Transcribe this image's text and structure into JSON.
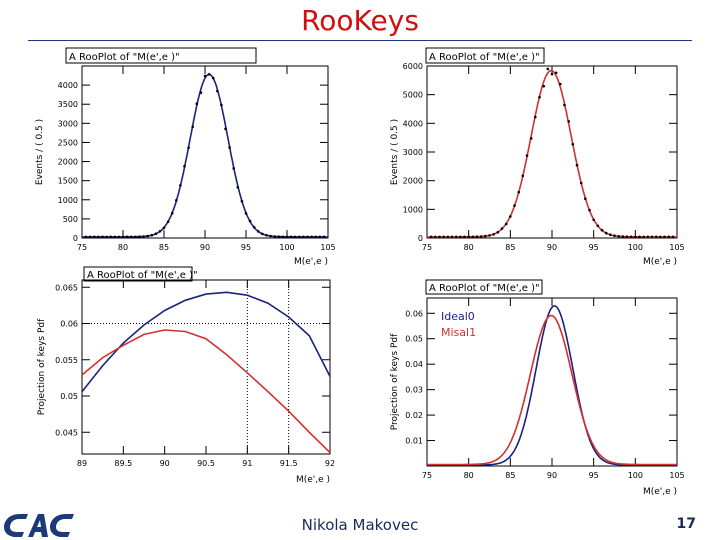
{
  "slide": {
    "title": "RooKeys",
    "footer_name": "Nikola Makovec",
    "page_number": "17"
  },
  "colors": {
    "series_a": "#1a237e",
    "series_b": "#d32f2f",
    "title": "#d01010"
  },
  "chart_data": [
    {
      "type": "line",
      "title": "A RooPlot of \"M(e',e )\"",
      "xlabel": "M(e',e )",
      "ylabel": "Events / ( 0.5 )",
      "xlim": [
        75,
        105
      ],
      "ylim": [
        0,
        4500
      ],
      "xticks": [
        75,
        80,
        85,
        90,
        95,
        100,
        105
      ],
      "yticks": [
        0,
        500,
        1000,
        1500,
        2000,
        2500,
        3000,
        3500,
        4000
      ],
      "ytick_labels": [
        "0",
        "500",
        "1000",
        "1500",
        "2000",
        "2500",
        "3000",
        "3500",
        "4000"
      ],
      "curve": {
        "peak": 4250,
        "mean": 90.5,
        "sigma": 2.3,
        "base": 30
      },
      "series": [
        {
          "color": "#1a237e"
        }
      ],
      "points": "fit-with-data"
    },
    {
      "type": "line",
      "title": "A RooPlot of \"M(e',e )\"",
      "xlabel": "M(e',e )",
      "ylabel": "Events / ( 0.5 )",
      "xlim": [
        75,
        105
      ],
      "ylim": [
        0,
        6000
      ],
      "xticks": [
        75,
        80,
        85,
        90,
        95,
        100,
        105
      ],
      "yticks": [
        0,
        1000,
        2000,
        3000,
        4000,
        5000,
        6000
      ],
      "ytick_labels": [
        "0",
        "1000",
        "2000",
        "3000",
        "4000",
        "5000",
        "6000"
      ],
      "curve": {
        "peak": 5800,
        "mean": 89.9,
        "sigma": 2.4,
        "base": 40
      },
      "series": [
        {
          "color": "#d32f2f"
        }
      ],
      "points": "fit-with-data"
    },
    {
      "type": "line",
      "title": "A RooPlot of \"M(e',e )\"",
      "xlabel": "M(e',e )",
      "ylabel": "Projection of keys Pdf",
      "xlim": [
        89,
        92
      ],
      "ylim": [
        0.042,
        0.066
      ],
      "xticks": [
        89,
        89.5,
        90,
        90.5,
        91,
        91.5,
        92
      ],
      "xtick_labels": [
        "89",
        "89.5",
        "90",
        "90.5",
        "91",
        "91.5",
        "92"
      ],
      "yticks": [
        0.045,
        0.05,
        0.055,
        0.06,
        0.065
      ],
      "ytick_labels": [
        "0.045",
        "0.05",
        "0.055",
        "0.06",
        "0.065"
      ],
      "series": [
        {
          "color": "#1a237e",
          "x": [
            89,
            89.25,
            89.5,
            89.75,
            90,
            90.25,
            90.5,
            90.75,
            91,
            91.25,
            91.5,
            91.75,
            92
          ],
          "y": [
            0.0506,
            0.0542,
            0.0573,
            0.0598,
            0.0618,
            0.0632,
            0.06405,
            0.0643,
            0.0639,
            0.0628,
            0.0609,
            0.0583,
            0.0527
          ]
        },
        {
          "color": "#d32f2f",
          "x": [
            89,
            89.25,
            89.5,
            89.75,
            90,
            90.25,
            90.5,
            90.75,
            91,
            91.25,
            91.5,
            91.75,
            92
          ],
          "y": [
            0.0529,
            0.0553,
            0.057,
            0.0585,
            0.0591,
            0.0589,
            0.0579,
            0.0557,
            0.0532,
            0.0506,
            0.0479,
            0.045,
            0.0422
          ]
        }
      ],
      "dotted_lines": {
        "h": [
          0.06
        ],
        "v": [
          91,
          91.5
        ]
      }
    },
    {
      "type": "line",
      "title": "A RooPlot of \"M(e',e )\"",
      "xlabel": "M(e',e )",
      "ylabel": "Projection of keys Pdf",
      "xlim": [
        75,
        105
      ],
      "ylim": [
        0,
        0.066
      ],
      "xticks": [
        75,
        80,
        85,
        90,
        95,
        100,
        105
      ],
      "yticks": [
        0.01,
        0.02,
        0.03,
        0.04,
        0.05,
        0.06
      ],
      "ytick_labels": [
        "0.01",
        "0.02",
        "0.03",
        "0.04",
        "0.05",
        "0.06"
      ],
      "legend": [
        "Ideal0",
        "Misal1"
      ],
      "legend_position": "top-left",
      "series": [
        {
          "name": "Ideal0",
          "color": "#1a237e",
          "peak": 0.0625,
          "mean": 90.3,
          "sigma": 2.2,
          "base": 0.0004
        },
        {
          "name": "Misal1",
          "color": "#d32f2f",
          "peak": 0.0585,
          "mean": 89.9,
          "sigma": 2.5,
          "base": 0.0006
        }
      ]
    }
  ]
}
